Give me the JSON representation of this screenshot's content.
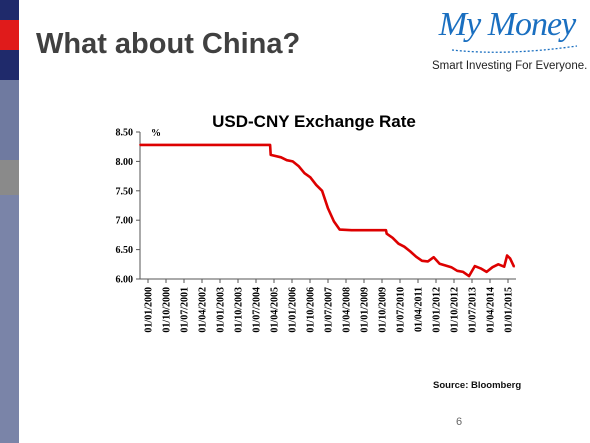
{
  "slide": {
    "title": "What about China?",
    "source": "Source: Bloomberg",
    "page_number": "6"
  },
  "logo": {
    "name": "My Money",
    "tagline": "Smart Investing For Everyone."
  },
  "colors": {
    "line": "#dd0000",
    "sidebar_dark": "#1f2a6b",
    "sidebar_accent": "#e01b1b",
    "logo_blue": "#1a6fc0"
  },
  "chart_data": {
    "type": "line",
    "title": "USD-CNY Exchange Rate",
    "ylabel": "%",
    "xlabel": "",
    "ylim": [
      6.0,
      8.5
    ],
    "yticks": [
      "8.50",
      "8.00",
      "7.50",
      "7.00",
      "6.50",
      "6.00"
    ],
    "xticks": [
      "01/01/2000",
      "01/10/2000",
      "01/07/2001",
      "01/04/2002",
      "01/01/2003",
      "01/10/2003",
      "01/07/2004",
      "01/04/2005",
      "01/01/2006",
      "01/10/2006",
      "01/07/2007",
      "01/04/2008",
      "01/01/2009",
      "01/10/2009",
      "01/07/2010",
      "01/04/2011",
      "01/01/2012",
      "01/10/2012",
      "01/07/2013",
      "01/04/2014",
      "01/01/2015"
    ],
    "grid": false,
    "legend": "none",
    "x": [
      "2000-01-01",
      "2005-07-15",
      "2005-07-25",
      "2006-01-01",
      "2006-04-01",
      "2006-07-01",
      "2006-10-01",
      "2007-01-01",
      "2007-04-01",
      "2007-07-01",
      "2007-10-01",
      "2008-01-01",
      "2008-04-01",
      "2008-07-01",
      "2009-01-01",
      "2009-07-01",
      "2010-01-01",
      "2010-06-20",
      "2010-07-01",
      "2010-10-01",
      "2011-01-01",
      "2011-04-01",
      "2011-07-01",
      "2011-10-01",
      "2012-01-01",
      "2012-04-01",
      "2012-07-01",
      "2012-10-01",
      "2013-01-01",
      "2013-04-01",
      "2013-07-01",
      "2013-10-01",
      "2014-01-01",
      "2014-04-01",
      "2014-07-01",
      "2014-10-01",
      "2015-01-01",
      "2015-04-01",
      "2015-07-01",
      "2015-08-15",
      "2015-10-01",
      "2015-12-01"
    ],
    "series": [
      {
        "values": [
          8.28,
          8.28,
          8.11,
          8.07,
          8.02,
          8.0,
          7.92,
          7.8,
          7.73,
          7.6,
          7.5,
          7.2,
          6.98,
          6.84,
          6.83,
          6.83,
          6.83,
          6.83,
          6.77,
          6.7,
          6.6,
          6.55,
          6.47,
          6.38,
          6.31,
          6.3,
          6.37,
          6.26,
          6.23,
          6.2,
          6.14,
          6.12,
          6.05,
          6.22,
          6.18,
          6.12,
          6.2,
          6.25,
          6.21,
          6.4,
          6.35,
          6.21
        ]
      }
    ]
  }
}
